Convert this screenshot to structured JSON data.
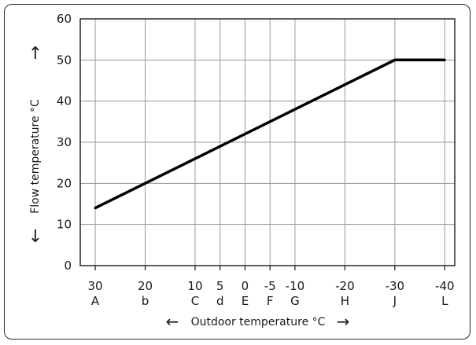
{
  "chart_data": {
    "type": "line",
    "title": "",
    "xlabel": "Outdoor temperature °C",
    "ylabel": "Flow temperature °C",
    "ylim": [
      0,
      60
    ],
    "yticks": [
      0,
      10,
      20,
      30,
      40,
      50,
      60
    ],
    "x_ticks": [
      {
        "value": 30,
        "label": "30",
        "letter": "A"
      },
      {
        "value": 20,
        "label": "20",
        "letter": "b"
      },
      {
        "value": 10,
        "label": "10",
        "letter": "C"
      },
      {
        "value": 5,
        "label": "5",
        "letter": "d"
      },
      {
        "value": 0,
        "label": "0",
        "letter": "E"
      },
      {
        "value": -5,
        "label": "-5",
        "letter": "F"
      },
      {
        "value": -10,
        "label": "-10",
        "letter": "G"
      },
      {
        "value": -20,
        "label": "-20",
        "letter": "H"
      },
      {
        "value": -30,
        "label": "-30",
        "letter": "J"
      },
      {
        "value": -40,
        "label": "-40",
        "letter": "L"
      }
    ],
    "xlim": [
      33,
      -42
    ],
    "series": [
      {
        "x": [
          30,
          -30,
          -40
        ],
        "y": [
          14,
          50,
          50
        ],
        "color": "#000000"
      }
    ],
    "grid": true,
    "arrows": {
      "y_up": "↑",
      "y_down": "↓",
      "x_left": "←",
      "x_right": "→"
    }
  }
}
